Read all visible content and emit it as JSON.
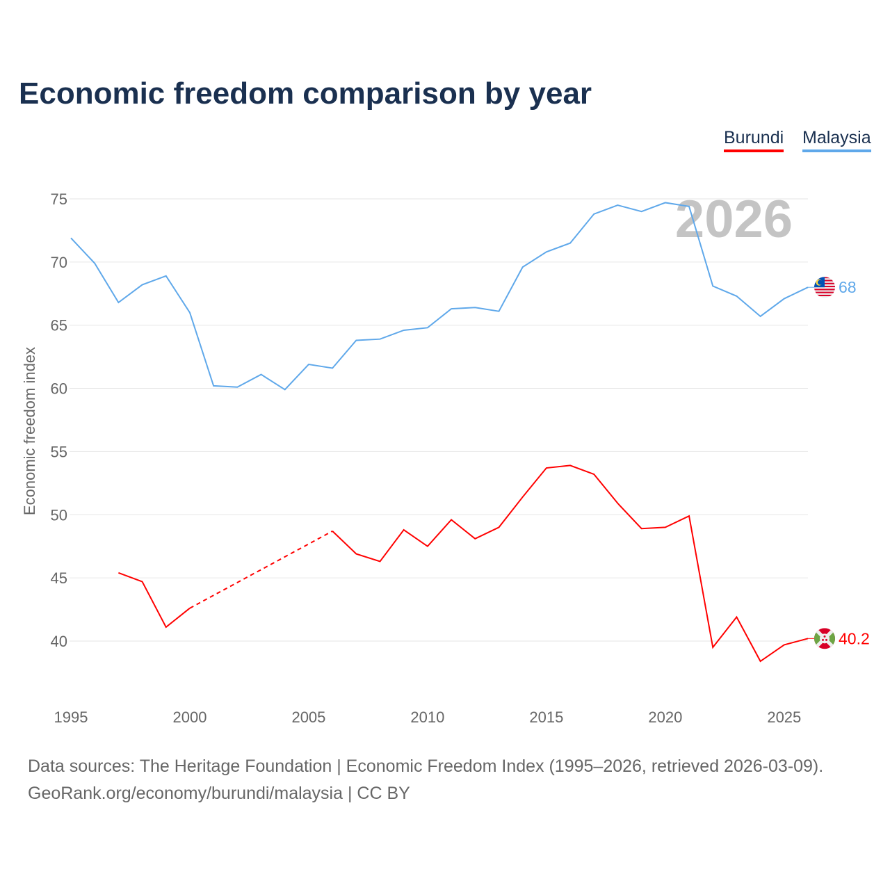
{
  "chart_data": {
    "type": "line",
    "title": "Economic freedom comparison by year",
    "xlabel": "",
    "ylabel": "Economic freedom index",
    "xlim": [
      1995,
      2026
    ],
    "ylim": [
      35.2,
      75
    ],
    "yticks": [
      40,
      45,
      50,
      55,
      60,
      65,
      70,
      75
    ],
    "xticks": [
      1995,
      2000,
      2005,
      2010,
      2015,
      2020,
      2025
    ],
    "grid": true,
    "legend_position": "top-right",
    "year_watermark": "2026",
    "x": [
      1995,
      1996,
      1997,
      1998,
      1999,
      2000,
      2001,
      2002,
      2003,
      2004,
      2005,
      2006,
      2007,
      2008,
      2009,
      2010,
      2011,
      2012,
      2013,
      2014,
      2015,
      2016,
      2017,
      2018,
      2019,
      2020,
      2021,
      2022,
      2023,
      2024,
      2025,
      2026
    ],
    "series": [
      {
        "name": "Burundi",
        "color": "#ff0000",
        "end_label": "40.2",
        "values": [
          null,
          null,
          45.4,
          44.7,
          41.1,
          42.6,
          null,
          null,
          null,
          null,
          null,
          48.7,
          46.9,
          46.3,
          48.8,
          47.5,
          49.6,
          48.1,
          49.0,
          51.4,
          53.7,
          53.9,
          53.2,
          50.9,
          48.9,
          49.0,
          49.9,
          39.5,
          41.9,
          38.4,
          39.7,
          40.2
        ]
      },
      {
        "name": "Malaysia",
        "color": "#5fa8ea",
        "end_label": "68",
        "values": [
          71.9,
          69.9,
          66.8,
          68.2,
          68.9,
          66.0,
          60.2,
          60.1,
          61.1,
          59.9,
          61.9,
          61.6,
          63.8,
          63.9,
          64.6,
          64.8,
          66.3,
          66.4,
          66.1,
          69.6,
          70.8,
          71.5,
          73.8,
          74.5,
          74.0,
          74.7,
          74.4,
          68.1,
          67.3,
          65.7,
          67.1,
          68.0
        ]
      }
    ]
  },
  "sources": {
    "line1": "Data sources: The Heritage Foundation | Economic Freedom Index (1995–2026, retrieved 2026-03-09).",
    "line2": "GeoRank.org/economy/burundi/malaysia | CC BY"
  }
}
